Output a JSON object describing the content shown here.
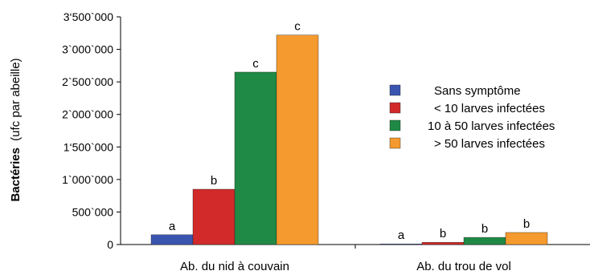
{
  "chart_data": {
    "type": "bar",
    "ylabel_bold": "Bactéries",
    "ylabel_rest": "(ufc par abeille)",
    "ylim": [
      0,
      3500000
    ],
    "ytick_values": [
      0,
      500000,
      1000000,
      1500000,
      2000000,
      2500000,
      3000000,
      3500000
    ],
    "ytick_labels": [
      "0",
      "500`000",
      "1`000`000",
      "1‘500`000",
      "2`000`000",
      "2`500`000",
      "3`000`000",
      "3‘500`000"
    ],
    "categories": [
      "Ab. du nid à couvain",
      "Ab. du trou de vol"
    ],
    "series": [
      {
        "name": "Sans symptôme",
        "color": "#3a55b0",
        "values": [
          150000,
          8000
        ],
        "labels": [
          "a",
          "a"
        ]
      },
      {
        "name": "< 10 larves infectées",
        "color": "#d22a2a",
        "values": [
          850000,
          35000
        ],
        "labels": [
          "b",
          "b"
        ]
      },
      {
        "name": "10 à 50 larves infectées",
        "color": "#1f8a45",
        "values": [
          2650000,
          110000
        ],
        "labels": [
          "c",
          "b"
        ]
      },
      {
        "name": "> 50 larves infectées",
        "color": "#f59a2e",
        "values": [
          3220000,
          185000
        ],
        "labels": [
          "c",
          "b"
        ]
      }
    ],
    "grid": false,
    "legend_position": "right"
  }
}
